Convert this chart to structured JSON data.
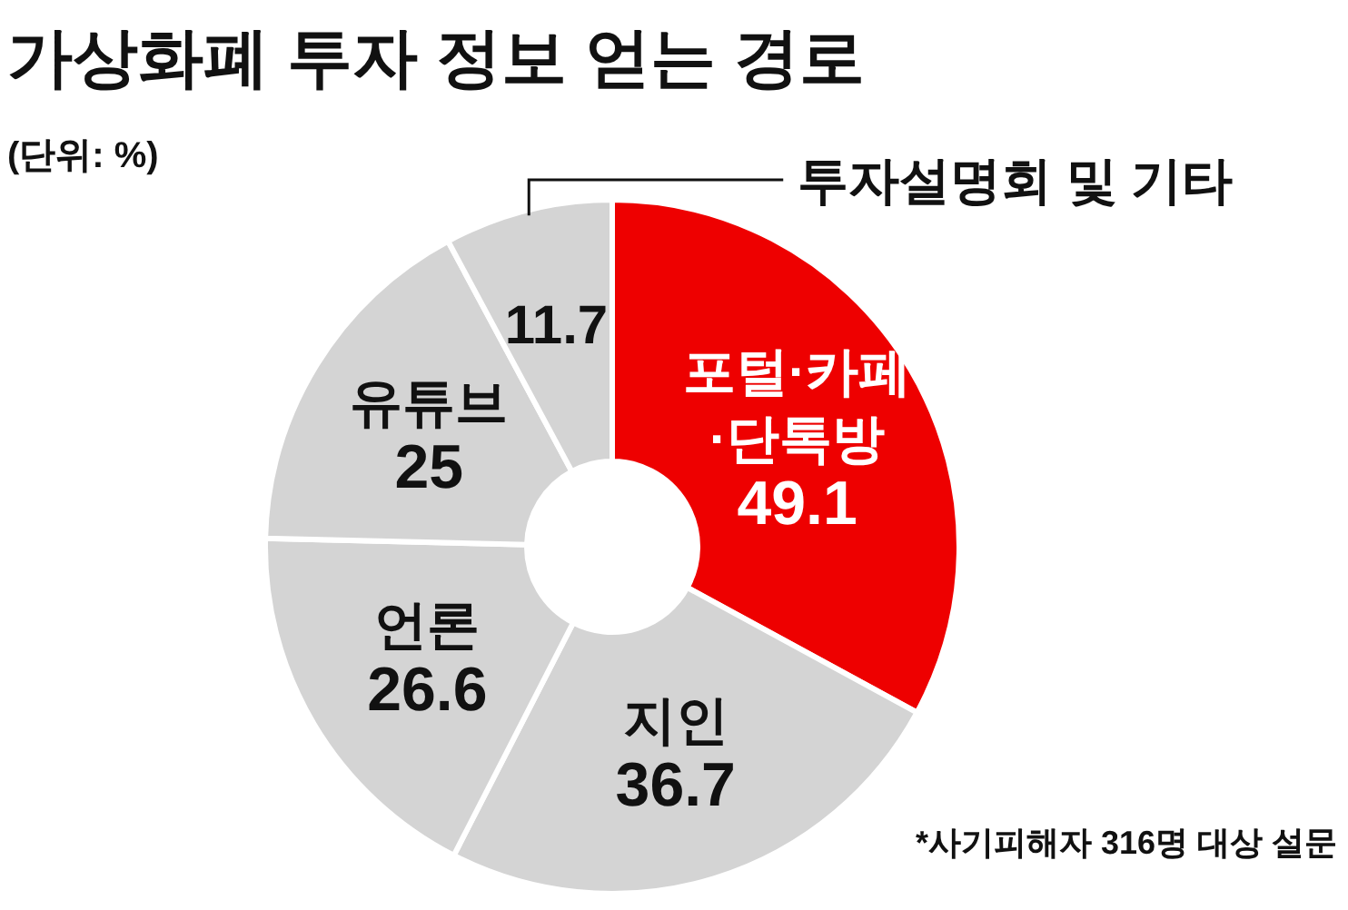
{
  "chart_data": {
    "type": "donut",
    "title": "가상화폐 투자 정보 얻는 경로",
    "subtitle": "(단위: %)",
    "categories": [
      "포털·카페·단톡방",
      "지인",
      "언론",
      "유튜브",
      "투자설명회 및 기타"
    ],
    "values": [
      49.1,
      36.7,
      26.6,
      25,
      11.7
    ],
    "colors": [
      "#ee0000",
      "#d4d4d4",
      "#d4d4d4",
      "#d4d4d4",
      "#d4d4d4"
    ],
    "data_labels": true,
    "annotations": [
      "*사기피해자 316명 대상 설문"
    ]
  }
}
